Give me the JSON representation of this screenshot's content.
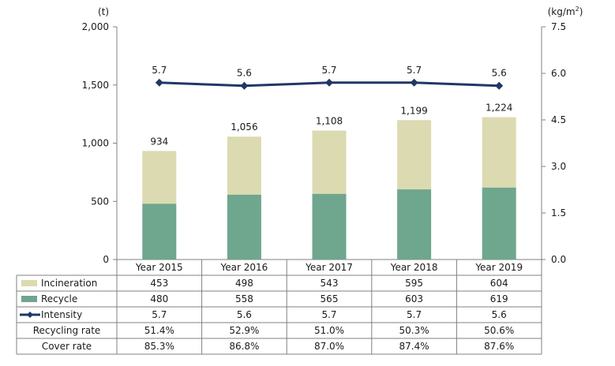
{
  "chart_data": {
    "type": "bar",
    "stacked": true,
    "categories": [
      "Year 2015",
      "Year 2016",
      "Year 2017",
      "Year 2018",
      "Year 2019"
    ],
    "series": [
      {
        "name": "Recycle",
        "kind": "bar",
        "axis": "left",
        "color": "#6fa68e",
        "values": [
          480,
          558,
          565,
          603,
          619
        ],
        "table_values": [
          "480",
          "558",
          "565",
          "603",
          "619"
        ]
      },
      {
        "name": "Incineration",
        "kind": "bar",
        "axis": "left",
        "color": "#dcdab0",
        "values": [
          453,
          498,
          543,
          595,
          604
        ],
        "table_values": [
          "453",
          "498",
          "543",
          "595",
          "604"
        ]
      },
      {
        "name": "Intensity",
        "kind": "line",
        "axis": "right",
        "color": "#1f3864",
        "values": [
          5.7,
          5.6,
          5.7,
          5.7,
          5.6
        ],
        "table_values": [
          "5.7",
          "5.6",
          "5.7",
          "5.7",
          "5.6"
        ]
      }
    ],
    "totals": [
      934,
      1056,
      1108,
      1199,
      1224
    ],
    "total_labels": [
      "934",
      "1,056",
      "1,108",
      "1,199",
      "1,224"
    ],
    "left_axis": {
      "unit": "(t)",
      "min": 0,
      "max": 2000,
      "ticks": [
        "0",
        "500",
        "1,000",
        "1,500",
        "2,000"
      ]
    },
    "right_axis": {
      "unit_base": "(kg/m",
      "unit_sup": "2",
      "unit_close": ")",
      "min": 0,
      "max": 7.5,
      "ticks": [
        "0.0",
        "1.5",
        "3.0",
        "4.5",
        "6.0",
        "7.5"
      ]
    },
    "table_order": [
      "Incineration",
      "Recycle",
      "Intensity"
    ],
    "extra_rows": [
      {
        "label": "Recycling rate",
        "values": [
          "51.4%",
          "52.9%",
          "51.0%",
          "50.3%",
          "50.6%"
        ]
      },
      {
        "label": "Cover rate",
        "values": [
          "85.3%",
          "86.8%",
          "87.0%",
          "87.4%",
          "87.6%"
        ]
      }
    ]
  }
}
